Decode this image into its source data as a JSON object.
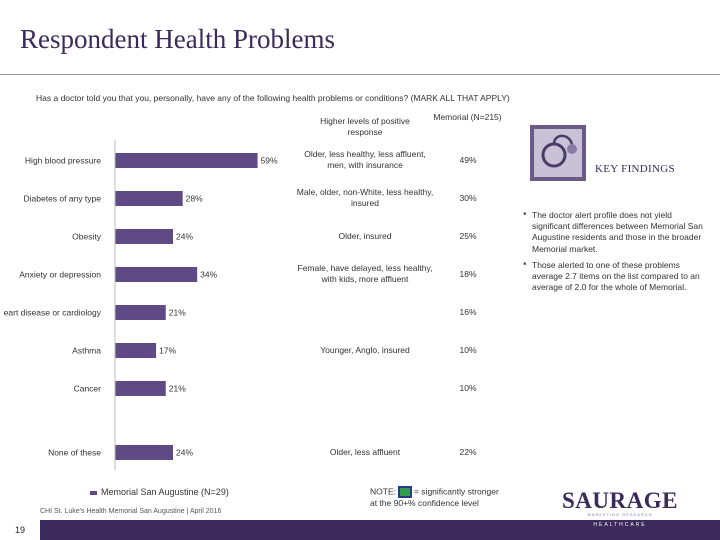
{
  "title": "Respondent Health Problems",
  "question": "Has a doctor told you that you, personally, have any of the following health problems or conditions? (MARK ALL THAT APPLY)",
  "columns": {
    "profile_header": "Higher levels of positive response",
    "memorial_header": "Memorial (N=215)"
  },
  "chart_data": {
    "type": "bar",
    "orientation": "horizontal",
    "title": "",
    "series": [
      {
        "name": "Memorial San Augustine (N=29)",
        "values": [
          59,
          28,
          24,
          34,
          21,
          17,
          21,
          24
        ]
      }
    ],
    "categories": [
      "High blood pressure",
      "Diabetes of any type",
      "Obesity",
      "Anxiety or depression",
      "Heart disease or cardiology",
      "Asthma",
      "Cancer",
      "None of these"
    ],
    "category_labels_visible": [
      "High blood pressure",
      "Diabetes of any type",
      "Obesity",
      "Anxiety or depression",
      "eart disease or cardiology",
      "Asthma",
      "Cancer",
      "None of these"
    ],
    "value_labels": [
      "59%",
      "28%",
      "24%",
      "34%",
      "21%",
      "17%",
      "21%",
      "24%"
    ],
    "xlim": [
      0,
      60
    ],
    "legend": "bottom-left",
    "grid": false
  },
  "profiles": [
    "Older, less healthy, less affluent, men, with insurance",
    "Male, older, non-White, less healthy, insured",
    "Older, insured",
    "Female, have delayed, less healthy, with kids, more affluent",
    "",
    "Younger, Anglo, insured",
    "",
    "Older, less affluent"
  ],
  "memorial_values": [
    "49%",
    "30%",
    "25%",
    "18%",
    "16%",
    "10%",
    "10%",
    "22%"
  ],
  "key_findings": {
    "title": "KEY FINDINGS",
    "items": [
      "The doctor alert profile does not yield significant differences between Memorial San Augustine residents and those in the broader Memorial market.",
      "Those alerted to one of these problems average 2.7 items on the list compared to an average of 2.0 for the whole of Memorial."
    ]
  },
  "legend_label": "Memorial San Augustine (N=29)",
  "note": {
    "prefix": "NOTE:",
    "suffix": "= significantly stronger",
    "line2": "at the 90+% confidence level"
  },
  "source": "CHI St. Luke's Health Memorial San Augustine | April 2016",
  "page_number": "19",
  "logo": {
    "name": "SAURAGE",
    "tagline": "MARKETING RESEARCH",
    "sub": "HEALTHCARE"
  },
  "colors": {
    "bar": "#5f4a86",
    "brand": "#3b2a5a"
  }
}
